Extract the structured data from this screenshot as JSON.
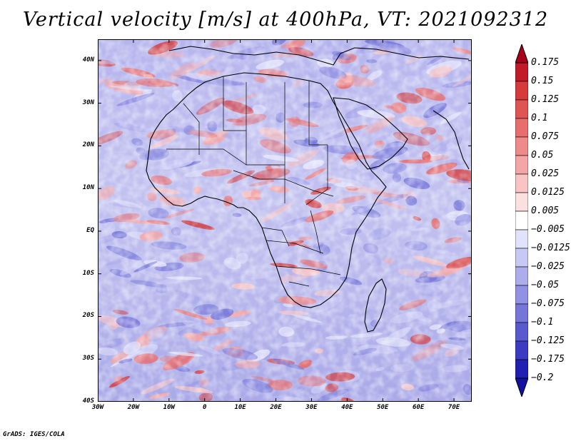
{
  "title": "Vertical velocity [m/s] at 400hPa, VT: 2021092312",
  "map": {
    "lat_labels": [
      "40N",
      "30N",
      "20N",
      "10N",
      "EQ",
      "10S",
      "20S",
      "30S",
      "40S"
    ],
    "lon_labels": [
      "30W",
      "20W",
      "10W",
      "0",
      "10E",
      "20E",
      "30E",
      "40E",
      "50E",
      "60E",
      "70E"
    ],
    "lon_range": [
      -30,
      75
    ],
    "lat_range": [
      -40,
      45
    ]
  },
  "colorbar": {
    "labels": [
      "0.175",
      "0.15",
      "0.125",
      "0.1",
      "0.075",
      "0.05",
      "0.025",
      "0.0125",
      "0.005",
      "-0.005",
      "-0.0125",
      "-0.025",
      "-0.05",
      "-0.075",
      "-0.1",
      "-0.125",
      "-0.175",
      "-0.2"
    ],
    "colors": [
      "#a8001c",
      "#c21a28",
      "#d63a3a",
      "#e05454",
      "#e86e6e",
      "#ef8a8a",
      "#f4a6a6",
      "#f8c4c4",
      "#fbe0e0",
      "#ffffff",
      "#e2e2fb",
      "#c8c8f4",
      "#adadec",
      "#9292e4",
      "#7676da",
      "#5a5acf",
      "#3c3cc2",
      "#2020b2",
      "#12129e"
    ]
  },
  "credit": "GrADS: IGES/COLA"
}
